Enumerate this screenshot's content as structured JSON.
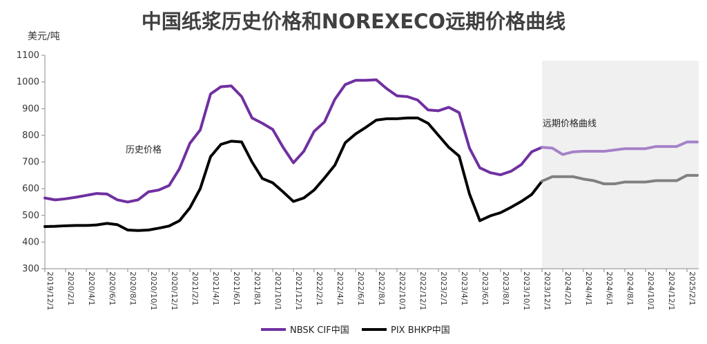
{
  "chart_data": {
    "type": "line",
    "title": "中国纸浆历史价格和NOREXECO远期价格曲线",
    "ylabel": "美元/吨",
    "ylim": [
      300,
      1100
    ],
    "yticks": [
      300,
      400,
      500,
      600,
      700,
      800,
      900,
      1000,
      1100
    ],
    "grid": false,
    "legend_position": "bottom",
    "xticks": [
      "2019/12/1",
      "2020/2/1",
      "2020/4/1",
      "2020/6/1",
      "2020/8/1",
      "2020/10/1",
      "2020/12/1",
      "2021/2/1",
      "2021/4/1",
      "2021/6/1",
      "2021/8/1",
      "2021/10/1",
      "2021/12/1",
      "2022/2/1",
      "2022/4/1",
      "2022/6/1",
      "2022/8/1",
      "2022/10/1",
      "2022/12/1",
      "2023/2/1",
      "2023/4/1",
      "2023/6/1",
      "2023/8/1",
      "2023/10/1",
      "2023/12/1",
      "2024/2/1",
      "2024/4/1",
      "2024/6/1",
      "2024/8/1",
      "2024/10/1",
      "2024/12/1",
      "2025/2/1"
    ],
    "x": [
      "2019/12",
      "2020/1",
      "2020/2",
      "2020/3",
      "2020/4",
      "2020/5",
      "2020/6",
      "2020/7",
      "2020/8",
      "2020/9",
      "2020/10",
      "2020/11",
      "2020/12",
      "2021/1",
      "2021/2",
      "2021/3",
      "2021/4",
      "2021/5",
      "2021/6",
      "2021/7",
      "2021/8",
      "2021/9",
      "2021/10",
      "2021/11",
      "2021/12",
      "2022/1",
      "2022/2",
      "2022/3",
      "2022/4",
      "2022/5",
      "2022/6",
      "2022/7",
      "2022/8",
      "2022/9",
      "2022/10",
      "2022/11",
      "2022/12",
      "2023/1",
      "2023/2",
      "2023/3",
      "2023/4",
      "2023/5",
      "2023/6",
      "2023/7",
      "2023/8",
      "2023/9",
      "2023/10",
      "2023/11",
      "2023/12",
      "2024/1",
      "2024/2",
      "2024/3",
      "2024/4",
      "2024/5",
      "2024/6",
      "2024/7",
      "2024/8",
      "2024/9",
      "2024/10",
      "2024/11",
      "2024/12",
      "2025/1",
      "2025/2",
      "2025/3"
    ],
    "series": [
      {
        "name": "NBSK CIF中国",
        "color": "#7030A0",
        "forward_color": "#A582C8",
        "values": [
          565,
          558,
          562,
          568,
          575,
          582,
          580,
          558,
          550,
          558,
          588,
          595,
          612,
          675,
          770,
          820,
          955,
          982,
          985,
          945,
          865,
          845,
          822,
          755,
          697,
          740,
          815,
          850,
          935,
          990,
          1006,
          1006,
          1008,
          975,
          948,
          945,
          932,
          895,
          892,
          905,
          885,
          752,
          678,
          660,
          652,
          665,
          690,
          738,
          755,
          752,
          728,
          738,
          740,
          740,
          740,
          745,
          750,
          750,
          750,
          758,
          758,
          758,
          775,
          775
        ],
        "forward_from": "2023/12"
      },
      {
        "name": "PIX BHKP中国",
        "color": "#000000",
        "forward_color": "#808080",
        "values": [
          458,
          459,
          461,
          462,
          462,
          464,
          470,
          465,
          445,
          443,
          445,
          452,
          460,
          480,
          528,
          600,
          720,
          766,
          778,
          775,
          700,
          638,
          622,
          588,
          552,
          565,
          595,
          640,
          688,
          772,
          805,
          830,
          857,
          862,
          862,
          865,
          865,
          845,
          800,
          755,
          722,
          580,
          480,
          498,
          510,
          530,
          552,
          578,
          628,
          645,
          645,
          645,
          636,
          630,
          618,
          618,
          625,
          625,
          625,
          630,
          630,
          630,
          650,
          650
        ],
        "forward_from": "2023/12"
      }
    ],
    "annotations": [
      {
        "text": "历史价格"
      },
      {
        "text": "远期价格曲线"
      }
    ],
    "forward_region_start": "2023/12"
  }
}
